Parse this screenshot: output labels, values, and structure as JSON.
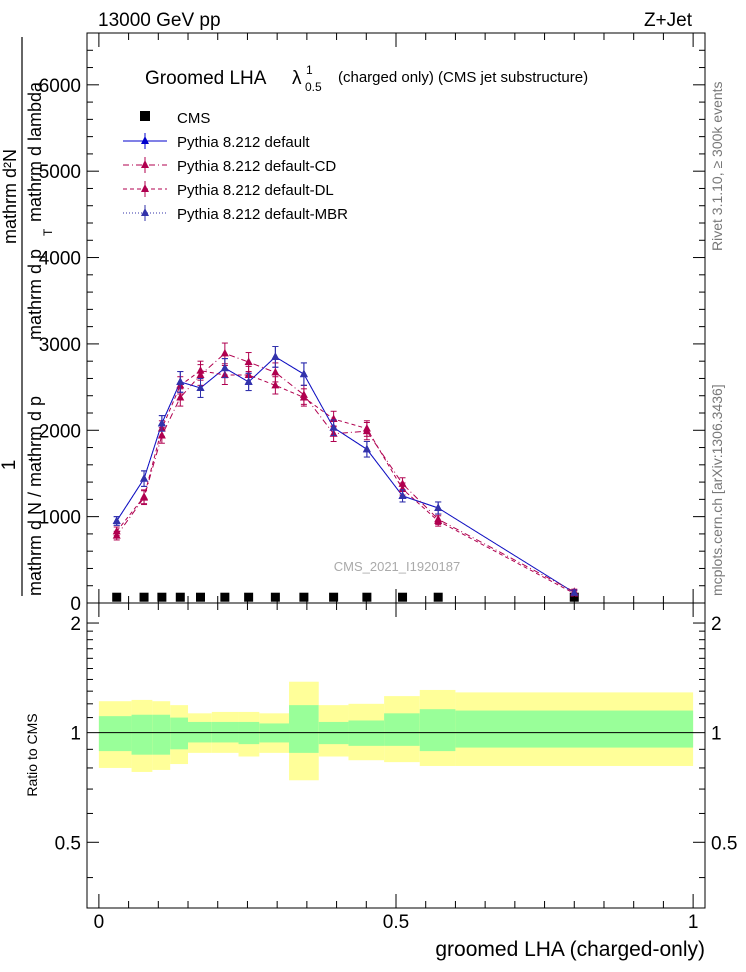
{
  "header": {
    "left": "13000 GeV pp",
    "right": "Z+Jet"
  },
  "title": {
    "main": "Groomed LHA",
    "lambda": "λ",
    "sup": "1",
    "sub": "0.5",
    "suffix": "(charged only) (CMS jet substructure)"
  },
  "side_labels": {
    "rivet": "Rivet 3.1.10, ≥ 300k events",
    "mcplots": "mcplots.cern.ch [arXiv:1306.3436]"
  },
  "watermark": "CMS_2021_I1920187",
  "ylabel_main": {
    "one": "1",
    "denominator": "mathrm d N / mathrm d p",
    "numerator": "mathrm d²N",
    "upper": "mathrm d p",
    "sub_t": "T",
    "upper_tail": "mathrm d lambda"
  },
  "ylabel_ratio": "Ratio to CMS",
  "xlabel": "groomed LHA (charged-only)",
  "colors": {
    "cms": "#000000",
    "default": "#0000cc",
    "cd": "#b0004f",
    "dl": "#b0004f",
    "mbr": "#3333aa",
    "band_inner": "#99ff99",
    "band_outer": "#ffff99"
  },
  "legend": [
    {
      "key": "cms",
      "label": "CMS"
    },
    {
      "key": "default",
      "label": "Pythia 8.212 default"
    },
    {
      "key": "cd",
      "label": "Pythia 8.212 default-CD"
    },
    {
      "key": "dl",
      "label": "Pythia 8.212 default-DL"
    },
    {
      "key": "mbr",
      "label": "Pythia 8.212 default-MBR"
    }
  ],
  "chart_data": {
    "type": "line",
    "xlim": [
      -0.02,
      1.02
    ],
    "main_ylim": [
      0,
      6600
    ],
    "main_yticks": [
      0,
      1000,
      2000,
      3000,
      4000,
      5000,
      6000
    ],
    "main_ytick_labels": [
      "0",
      "1000",
      "2000",
      "3000",
      "4000",
      "5000",
      "6000"
    ],
    "xticks": [
      0,
      0.5,
      1
    ],
    "xtick_labels": [
      "0",
      "0.5",
      "1"
    ],
    "ratio_ylim": [
      0.33,
      2.27
    ],
    "ratio_yticks": [
      0.5,
      1,
      2
    ],
    "ratio_ytick_labels": [
      "0.5",
      "1",
      "2"
    ],
    "bin_edges": [
      0,
      0.055,
      0.09,
      0.12,
      0.15,
      0.19,
      0.235,
      0.27,
      0.32,
      0.37,
      0.42,
      0.48,
      0.54,
      0.6,
      1.0
    ],
    "x": [
      0.03,
      0.076,
      0.106,
      0.137,
      0.171,
      0.212,
      0.252,
      0.297,
      0.345,
      0.395,
      0.451,
      0.511,
      0.571,
      0.8
    ],
    "series": [
      {
        "name": "CMS",
        "key": "cms",
        "y": [
          15,
          15,
          15,
          15,
          15,
          15,
          15,
          15,
          15,
          15,
          15,
          15,
          15,
          15
        ]
      },
      {
        "name": "Pythia 8.212 default",
        "key": "default",
        "style": "solid",
        "y": [
          950,
          1440,
          2080,
          2560,
          2490,
          2720,
          2560,
          2850,
          2650,
          2030,
          1780,
          1240,
          1100,
          120
        ],
        "err": [
          50,
          90,
          90,
          120,
          110,
          110,
          100,
          120,
          130,
          90,
          90,
          70,
          70,
          30
        ]
      },
      {
        "name": "Pythia 8.212 default-CD",
        "key": "cd",
        "style": "dashdot",
        "y": [
          780,
          1220,
          1940,
          2380,
          2640,
          2890,
          2790,
          2670,
          2410,
          1960,
          1990,
          1380,
          970,
          130
        ],
        "err": [
          50,
          80,
          90,
          100,
          120,
          120,
          110,
          110,
          110,
          90,
          100,
          70,
          60,
          30
        ]
      },
      {
        "name": "Pythia 8.212 default-DL",
        "key": "dl",
        "style": "dashed",
        "y": [
          830,
          1230,
          2020,
          2520,
          2690,
          2640,
          2640,
          2520,
          2380,
          2130,
          2020,
          1320,
          950,
          110
        ],
        "err": [
          50,
          80,
          90,
          100,
          110,
          110,
          100,
          100,
          100,
          90,
          90,
          70,
          60,
          30
        ]
      },
      {
        "name": "Pythia 8.212 default-MBR",
        "key": "mbr",
        "style": "dotted",
        "y": [
          950,
          1440,
          2080,
          2560,
          2490,
          2720,
          2560,
          2850,
          2650,
          2030,
          1780,
          1240,
          1100,
          120
        ],
        "err": [
          50,
          90,
          90,
          120,
          110,
          110,
          100,
          120,
          130,
          90,
          90,
          70,
          70,
          30
        ]
      }
    ],
    "ratio_band_inner": [
      [
        0.89,
        1.11
      ],
      [
        0.87,
        1.12
      ],
      [
        0.87,
        1.12
      ],
      [
        0.9,
        1.1
      ],
      [
        0.94,
        1.07
      ],
      [
        0.94,
        1.07
      ],
      [
        0.93,
        1.07
      ],
      [
        0.94,
        1.06
      ],
      [
        0.88,
        1.19
      ],
      [
        0.93,
        1.07
      ],
      [
        0.92,
        1.08
      ],
      [
        0.92,
        1.13
      ],
      [
        0.89,
        1.16
      ],
      [
        0.91,
        1.15
      ]
    ],
    "ratio_band_outer": [
      [
        0.8,
        1.22
      ],
      [
        0.78,
        1.23
      ],
      [
        0.79,
        1.22
      ],
      [
        0.82,
        1.19
      ],
      [
        0.88,
        1.13
      ],
      [
        0.88,
        1.14
      ],
      [
        0.86,
        1.14
      ],
      [
        0.88,
        1.13
      ],
      [
        0.74,
        1.38
      ],
      [
        0.86,
        1.19
      ],
      [
        0.84,
        1.2
      ],
      [
        0.83,
        1.26
      ],
      [
        0.81,
        1.31
      ],
      [
        0.81,
        1.29
      ]
    ]
  }
}
